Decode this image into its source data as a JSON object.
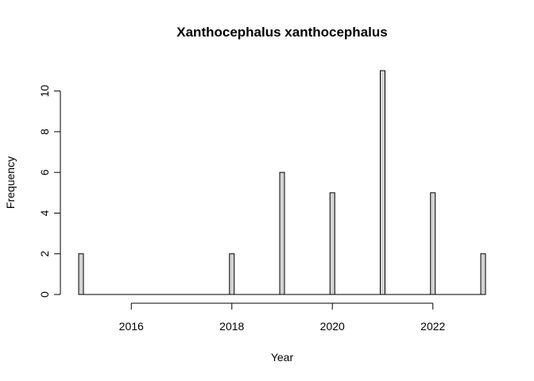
{
  "chart_data": {
    "type": "bar",
    "title": "Xanthocephalus xanthocephalus",
    "xlabel": "Year",
    "ylabel": "Frequency",
    "x": [
      2015,
      2018,
      2019,
      2020,
      2021,
      2022,
      2023
    ],
    "values": [
      2,
      2,
      6,
      5,
      11,
      5,
      2
    ],
    "xlim": [
      2015,
      2023
    ],
    "ylim": [
      0,
      11
    ],
    "xticks": [
      2016,
      2018,
      2020,
      2022
    ],
    "yticks": [
      0,
      2,
      4,
      6,
      8,
      10
    ],
    "bar_color": "#d3d3d3",
    "grid": false,
    "legend": "none"
  }
}
